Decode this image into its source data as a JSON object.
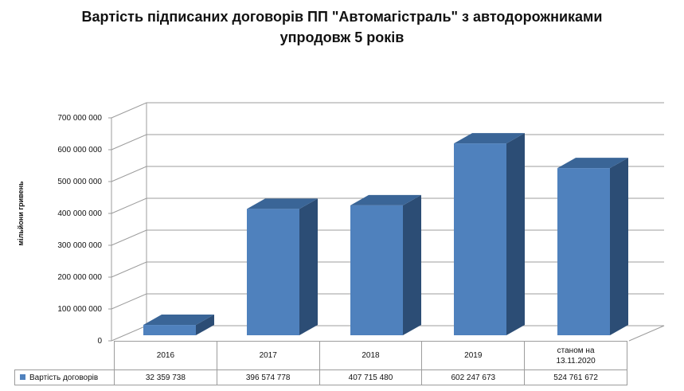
{
  "chart_data": {
    "type": "bar",
    "title": "Вартість підписаних договорів  ПП \"Автомагістраль\" з автодорожниками упродовж 5 років",
    "title_lines": [
      "Вартість підписаних договорів  ПП \"Автомагістраль\" з автодорожниками",
      "упродовж 5 років"
    ],
    "ylabel": "мільйони гривень",
    "xlabel": "",
    "categories": [
      "2016",
      "2017",
      "2018",
      "2019",
      "станом на 13.11.2020"
    ],
    "series": [
      {
        "name": "Вартість договорів",
        "values": [
          32359738,
          396574778,
          407715480,
          602247673,
          524761672
        ],
        "value_labels": [
          "32 359 738",
          "396 574 778",
          "407 715 480",
          "602 247 673",
          "524 761 672"
        ]
      }
    ],
    "ylim": [
      0,
      700000000
    ],
    "yticks": [
      0,
      100000000,
      200000000,
      300000000,
      400000000,
      500000000,
      600000000,
      700000000
    ],
    "ytick_labels": [
      "0",
      "100 000 000",
      "200 000 000",
      "300 000 000",
      "400 000 000",
      "500 000 000",
      "600 000 000",
      "700 000 000"
    ],
    "grid": true,
    "style": "3d-column",
    "legend": "data-table",
    "colors": {
      "front": "#4f81bd",
      "side": "#2c4d75",
      "top": "#3a6597",
      "grid": "#9c9c9c"
    }
  }
}
